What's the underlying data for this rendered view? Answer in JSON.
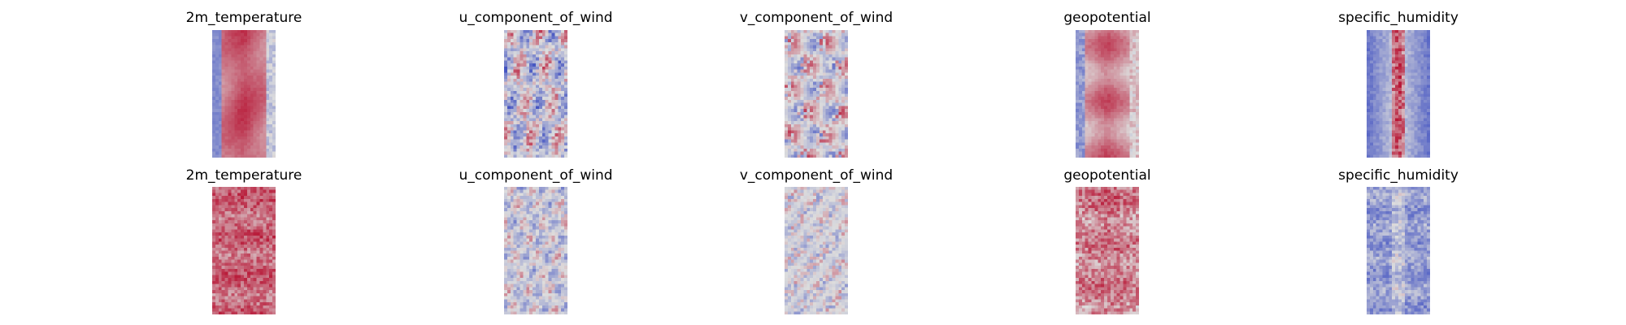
{
  "chart_data": {
    "type": "heatmap",
    "colormap": "coolwarm",
    "axes_visible": false,
    "grid": false,
    "legend": "none",
    "rows": [
      {
        "panels": [
          {
            "title": "2m_temperature",
            "pattern": "warm_band"
          },
          {
            "title": "u_component_of_wind",
            "pattern": "wind_streaks"
          },
          {
            "title": "v_component_of_wind",
            "pattern": "wind_blobs"
          },
          {
            "title": "geopotential",
            "pattern": "geo_band"
          },
          {
            "title": "specific_humidity",
            "pattern": "humidity_spine"
          }
        ]
      },
      {
        "panels": [
          {
            "title": "2m_temperature",
            "pattern": "noisy_warm"
          },
          {
            "title": "u_component_of_wind",
            "pattern": "noisy_wind"
          },
          {
            "title": "v_component_of_wind",
            "pattern": "noisy_wind_v"
          },
          {
            "title": "geopotential",
            "pattern": "noisy_geo"
          },
          {
            "title": "specific_humidity",
            "pattern": "noisy_humidity"
          }
        ]
      }
    ],
    "colors": {
      "cold": "#3b4cc0",
      "neutral": "#dddddd",
      "warm": "#b40426"
    }
  }
}
